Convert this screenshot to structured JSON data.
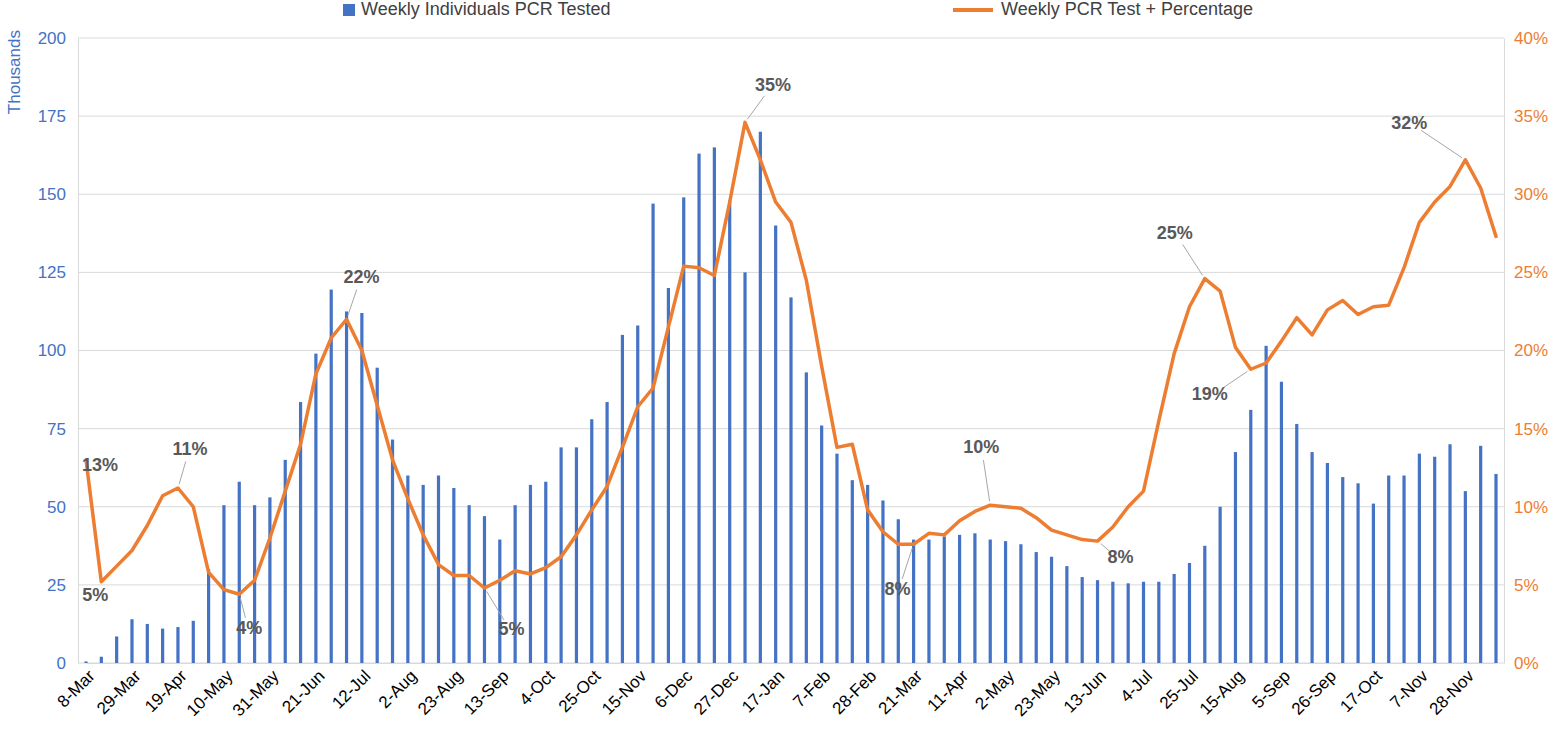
{
  "chart_data": {
    "type": "bar",
    "categories": [
      "8-Mar",
      null,
      null,
      "29-Mar",
      null,
      null,
      "19-Apr",
      null,
      null,
      "10-May",
      null,
      null,
      "31-May",
      null,
      null,
      "21-Jun",
      null,
      null,
      "12-Jul",
      null,
      null,
      "2-Aug",
      null,
      null,
      "23-Aug",
      null,
      null,
      "13-Sep",
      null,
      null,
      "4-Oct",
      null,
      null,
      "25-Oct",
      null,
      null,
      "15-Nov",
      null,
      null,
      "6-Dec",
      null,
      null,
      "27-Dec",
      null,
      null,
      "17-Jan",
      null,
      null,
      "7-Feb",
      null,
      null,
      "28-Feb",
      null,
      null,
      "21-Mar",
      null,
      null,
      "11-Apr",
      null,
      null,
      "2-May",
      null,
      null,
      "23-May",
      null,
      null,
      "13-Jun",
      null,
      null,
      "4-Jul",
      null,
      null,
      "25-Jul",
      null,
      null,
      "15-Aug",
      null,
      null,
      "5-Sep",
      null,
      null,
      "26-Sep",
      null,
      null,
      "17-Oct",
      null,
      null,
      "7-Nov",
      null,
      null,
      "28-Nov",
      null,
      null
    ],
    "series": [
      {
        "name": "Weekly Individuals PCR Tested",
        "type": "bar",
        "color": "#4472c4",
        "values": [
          0.5,
          2,
          8.5,
          14,
          12.5,
          11,
          11.5,
          13.5,
          30,
          50.5,
          58,
          50.5,
          53,
          65,
          83.5,
          99,
          119.5,
          112.5,
          112,
          94.5,
          71.5,
          60,
          57,
          60,
          56,
          50.5,
          47,
          39.5,
          50.5,
          57,
          58,
          69,
          69,
          78,
          83.5,
          105,
          108,
          147,
          120,
          149,
          163,
          165,
          148,
          125,
          170,
          140,
          117,
          93,
          76,
          67,
          58.5,
          57,
          52,
          46,
          39.5,
          39.5,
          40.5,
          41,
          41.5,
          39.5,
          39,
          38,
          35.5,
          34,
          31,
          27.5,
          26.5,
          26,
          25.5,
          26,
          26,
          28.5,
          32,
          37.5,
          50,
          67.5,
          81,
          101.5,
          90,
          76.5,
          67.5,
          64,
          59.5,
          57.5,
          51,
          60,
          60,
          67,
          66,
          70,
          55,
          69.5,
          60.5
        ]
      },
      {
        "name": "Weekly PCR Test + Percentage",
        "type": "line",
        "color": "#ed7d31",
        "axis": "y2",
        "values": [
          13,
          5.2,
          6.2,
          7.2,
          8.8,
          10.7,
          11.2,
          10,
          5.8,
          4.7,
          4.4,
          5.3,
          8,
          11,
          14,
          18.5,
          20.8,
          22,
          20,
          16.5,
          13,
          10.5,
          8.2,
          6.3,
          5.6,
          5.6,
          4.8,
          5.3,
          5.9,
          5.7,
          6.1,
          6.8,
          8.2,
          9.8,
          11.3,
          13.8,
          16.4,
          17.6,
          21.5,
          25.4,
          25.3,
          24.8,
          29.5,
          34.6,
          32.2,
          29.5,
          28.2,
          24.5,
          19,
          13.8,
          14,
          9.8,
          8.4,
          7.6,
          7.6,
          8.3,
          8.2,
          9.1,
          9.7,
          10.1,
          10,
          9.9,
          9.3,
          8.5,
          8.2,
          7.9,
          7.8,
          8.7,
          10,
          11,
          15.5,
          19.8,
          22.8,
          24.6,
          23.8,
          20.2,
          18.8,
          19.2,
          20.6,
          22.1,
          21,
          22.6,
          23.2,
          22.3,
          22.8,
          22.9,
          25.3,
          28.2,
          29.5,
          30.5,
          32.2,
          30.4,
          27.3
        ],
        "value_labels": [
          "13%",
          "5%",
          null,
          null,
          null,
          null,
          "11%",
          null,
          null,
          null,
          "4%",
          null,
          null,
          null,
          null,
          null,
          null,
          "22%",
          null,
          null,
          null,
          null,
          null,
          null,
          null,
          null,
          "5%",
          null,
          null,
          null,
          null,
          null,
          null,
          null,
          null,
          null,
          null,
          null,
          null,
          null,
          null,
          null,
          null,
          "35%",
          null,
          null,
          null,
          null,
          null,
          null,
          null,
          null,
          null,
          null,
          "8%",
          null,
          null,
          null,
          null,
          "10%",
          null,
          null,
          null,
          null,
          null,
          null,
          "8%",
          null,
          null,
          null,
          null,
          null,
          null,
          "25%",
          null,
          null,
          "19%",
          null,
          null,
          null,
          null,
          null,
          null,
          null,
          null,
          null,
          null,
          null,
          null,
          null,
          "32%",
          null,
          null
        ]
      }
    ],
    "y_label": "Thousands",
    "ylim": [
      0,
      200
    ],
    "yticks": [
      0,
      25,
      50,
      75,
      100,
      125,
      150,
      175,
      200
    ],
    "y2lim": [
      0,
      40
    ],
    "y2ticks": [
      {
        "value": 0,
        "label": "0%"
      },
      {
        "value": 5,
        "label": "5%"
      },
      {
        "value": 10,
        "label": "10%"
      },
      {
        "value": 15,
        "label": "15%"
      },
      {
        "value": 20,
        "label": "20%"
      },
      {
        "value": 25,
        "label": "25%"
      },
      {
        "value": 30,
        "label": "30%"
      },
      {
        "value": 35,
        "label": "35%"
      },
      {
        "value": 40,
        "label": "40%"
      }
    ],
    "grid": true,
    "legend": "top"
  }
}
